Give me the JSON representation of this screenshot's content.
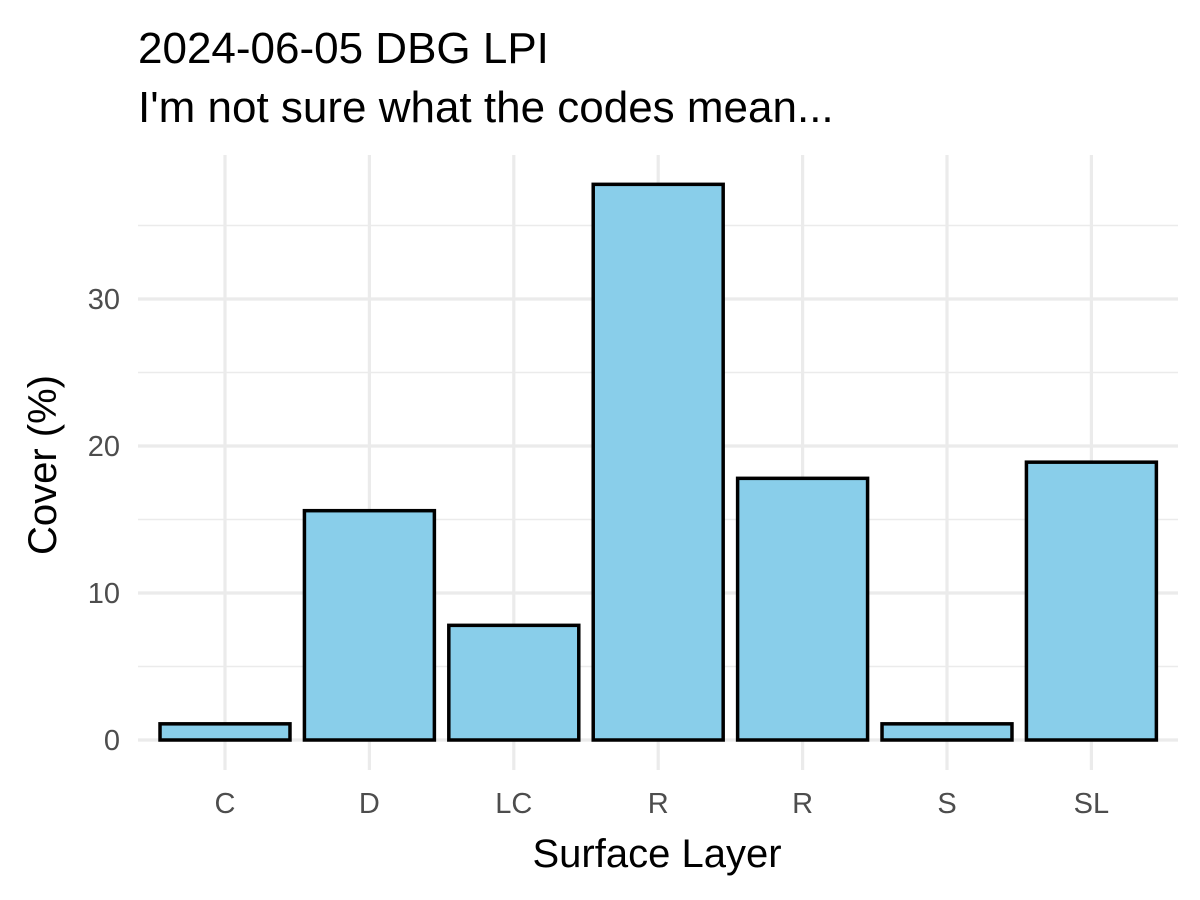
{
  "chart_data": {
    "type": "bar",
    "title": "2024-06-05 DBG LPI",
    "subtitle": "I'm not sure what the codes mean...",
    "xlabel": "Surface Layer",
    "ylabel": "Cover (%)",
    "categories": [
      "C",
      "D",
      "LC",
      "R",
      "R",
      "S",
      "SL"
    ],
    "values": [
      1.1,
      15.6,
      7.8,
      37.8,
      17.8,
      1.1,
      18.9
    ],
    "ylim": [
      0,
      39
    ],
    "yticks": [
      0,
      10,
      20,
      30
    ],
    "grid": true,
    "legend": "none",
    "bar_fill": "#89CEEA",
    "bar_outline": "#000000",
    "grid_color": "#EBEBEB"
  }
}
